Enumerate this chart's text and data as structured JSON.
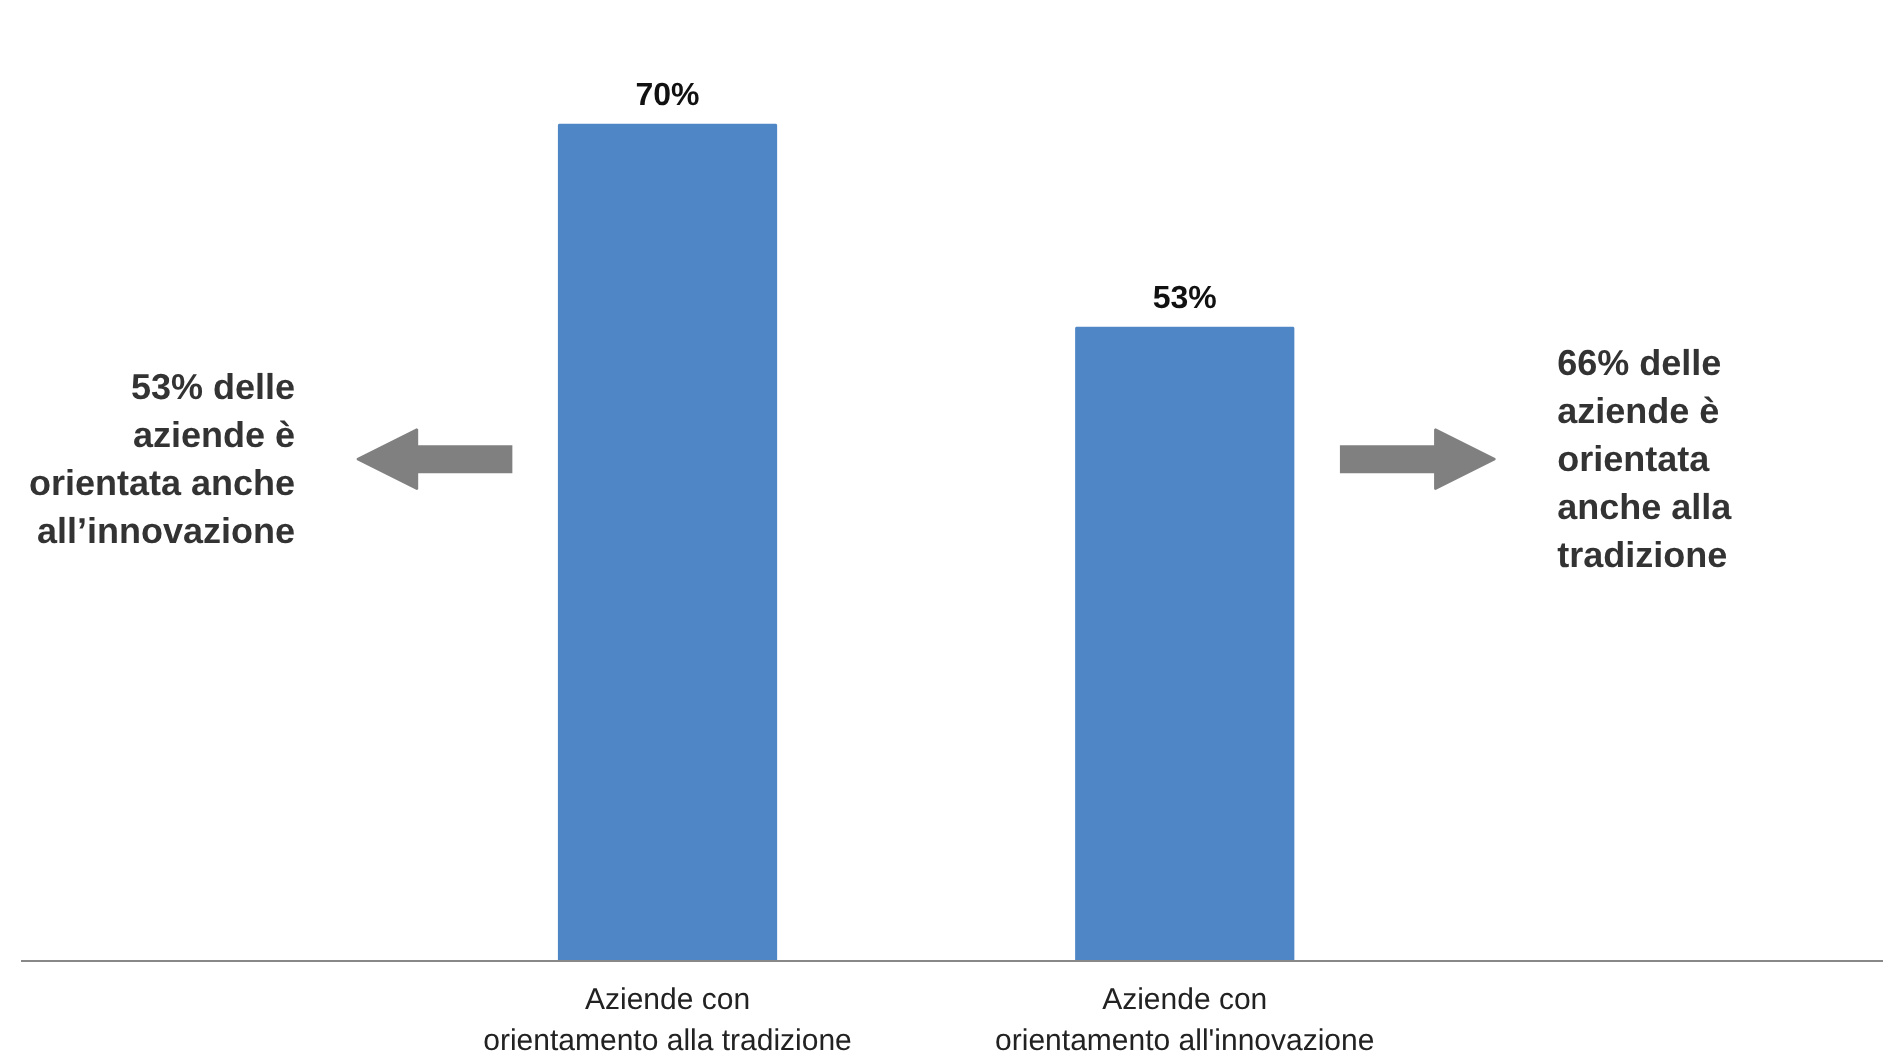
{
  "chart_data": {
    "type": "bar",
    "categories": [
      "Aziende con\norientamento alla tradizione",
      "Aziende con\norientamento all'innovazione"
    ],
    "values": [
      70,
      53
    ],
    "value_labels": [
      "70%",
      "53%"
    ],
    "color": "#4f86c6",
    "grid": false,
    "annotations": [
      "53% delle\naziende è\norientata anche\nall’innovazione",
      "66% delle\naziende è\norientata\nanche alla\ntradizione"
    ]
  }
}
